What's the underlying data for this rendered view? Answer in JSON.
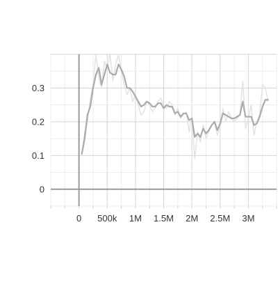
{
  "chart_data": {
    "type": "line",
    "title": "",
    "xlabel": "",
    "ylabel": "",
    "xlim": [
      -500000,
      3500000
    ],
    "ylim": [
      -0.05,
      0.4
    ],
    "x_ticks": [
      0,
      500000,
      1000000,
      1500000,
      2000000,
      2500000,
      3000000
    ],
    "x_tick_labels": [
      "0",
      "500k",
      "1M",
      "1.5M",
      "2M",
      "2.5M",
      "3M"
    ],
    "y_ticks": [
      0,
      0.1,
      0.2,
      0.3
    ],
    "y_tick_labels": [
      "0",
      "0.1",
      "0.2",
      "0.3"
    ],
    "grid": true,
    "legend": "none",
    "colors": {
      "smoothed": "#aaaaaa",
      "raw": "#e3e3e3",
      "grid": "#d4d4d4",
      "axis": "#9a9a9a"
    },
    "series": [
      {
        "role": "raw",
        "x": [
          50000,
          100000,
          150000,
          200000,
          250000,
          300000,
          350000,
          400000,
          450000,
          500000,
          550000,
          600000,
          650000,
          700000,
          750000,
          800000,
          850000,
          900000,
          950000,
          1000000,
          1050000,
          1100000,
          1150000,
          1200000,
          1250000,
          1300000,
          1350000,
          1400000,
          1450000,
          1500000,
          1550000,
          1600000,
          1650000,
          1700000,
          1750000,
          1800000,
          1850000,
          1900000,
          1950000,
          2000000,
          2050000,
          2100000,
          2150000,
          2200000,
          2250000,
          2300000,
          2350000,
          2400000,
          2450000,
          2500000,
          2550000,
          2600000,
          2650000,
          2700000,
          2750000,
          2800000,
          2850000,
          2900000,
          2950000,
          3000000,
          3050000,
          3100000,
          3150000,
          3200000,
          3250000,
          3300000,
          3350000
        ],
        "values": [
          0.1,
          0.17,
          0.2,
          0.27,
          0.31,
          0.4,
          0.33,
          0.3,
          0.38,
          0.36,
          0.4,
          0.32,
          0.37,
          0.4,
          0.35,
          0.31,
          0.28,
          0.3,
          0.26,
          0.28,
          0.25,
          0.22,
          0.23,
          0.26,
          0.25,
          0.23,
          0.24,
          0.26,
          0.27,
          0.25,
          0.24,
          0.26,
          0.25,
          0.22,
          0.24,
          0.21,
          0.22,
          0.23,
          0.17,
          0.22,
          0.09,
          0.17,
          0.14,
          0.19,
          0.15,
          0.17,
          0.19,
          0.2,
          0.16,
          0.19,
          0.24,
          0.2,
          0.23,
          0.21,
          0.2,
          0.21,
          0.22,
          0.32,
          0.18,
          0.21,
          0.25,
          0.16,
          0.2,
          0.22,
          0.31,
          0.3,
          0.26
        ]
      },
      {
        "role": "smoothed",
        "x": [
          50000,
          100000,
          150000,
          200000,
          250000,
          300000,
          350000,
          400000,
          450000,
          500000,
          550000,
          600000,
          650000,
          700000,
          750000,
          800000,
          850000,
          900000,
          950000,
          1000000,
          1050000,
          1100000,
          1150000,
          1200000,
          1250000,
          1300000,
          1350000,
          1400000,
          1450000,
          1500000,
          1550000,
          1600000,
          1650000,
          1700000,
          1750000,
          1800000,
          1850000,
          1900000,
          1950000,
          2000000,
          2050000,
          2100000,
          2150000,
          2200000,
          2250000,
          2300000,
          2350000,
          2400000,
          2450000,
          2500000,
          2550000,
          2600000,
          2650000,
          2700000,
          2750000,
          2800000,
          2850000,
          2900000,
          2950000,
          3000000,
          3050000,
          3100000,
          3150000,
          3200000,
          3250000,
          3300000,
          3350000
        ],
        "values": [
          0.105,
          0.15,
          0.22,
          0.245,
          0.3,
          0.34,
          0.36,
          0.31,
          0.34,
          0.37,
          0.345,
          0.34,
          0.34,
          0.37,
          0.355,
          0.335,
          0.3,
          0.3,
          0.29,
          0.275,
          0.26,
          0.245,
          0.25,
          0.26,
          0.255,
          0.245,
          0.245,
          0.255,
          0.255,
          0.24,
          0.25,
          0.245,
          0.245,
          0.225,
          0.23,
          0.215,
          0.225,
          0.225,
          0.205,
          0.21,
          0.155,
          0.165,
          0.155,
          0.18,
          0.165,
          0.175,
          0.19,
          0.2,
          0.175,
          0.195,
          0.225,
          0.22,
          0.215,
          0.21,
          0.21,
          0.215,
          0.22,
          0.26,
          0.215,
          0.215,
          0.215,
          0.19,
          0.195,
          0.215,
          0.245,
          0.265,
          0.265
        ]
      }
    ]
  }
}
